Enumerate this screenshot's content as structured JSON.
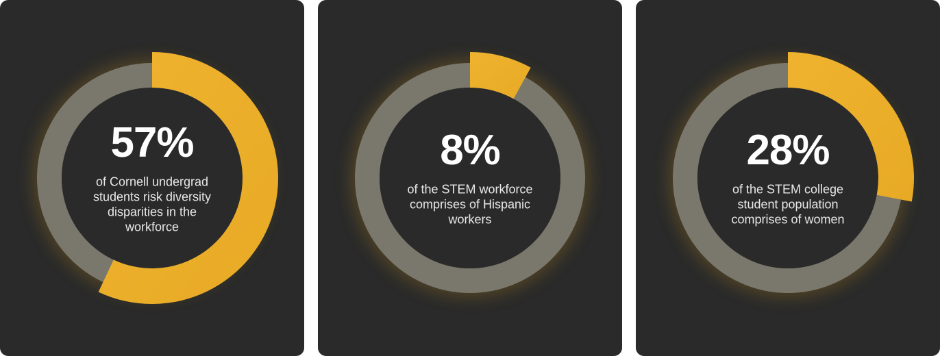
{
  "colors": {
    "card_bg": "#2a2a2a",
    "track": "#7a776c",
    "inner": "#2a2a2a",
    "accent": "#efb32f",
    "accent_dark": "#e8aa25",
    "text": "#ffffff"
  },
  "chart_data": [
    {
      "type": "pie",
      "value": 57,
      "percent_label": "57%",
      "description_lines": [
        "of Cornell undergrad",
        "students risk diversity",
        "disparities in the",
        "workforce"
      ]
    },
    {
      "type": "pie",
      "value": 8,
      "percent_label": "8%",
      "description_lines": [
        "of the STEM workforce",
        "comprises of Hispanic",
        "workers"
      ]
    },
    {
      "type": "pie",
      "value": 28,
      "percent_label": "28%",
      "description_lines": [
        "of the STEM college",
        "student population",
        "comprises of women"
      ]
    }
  ]
}
